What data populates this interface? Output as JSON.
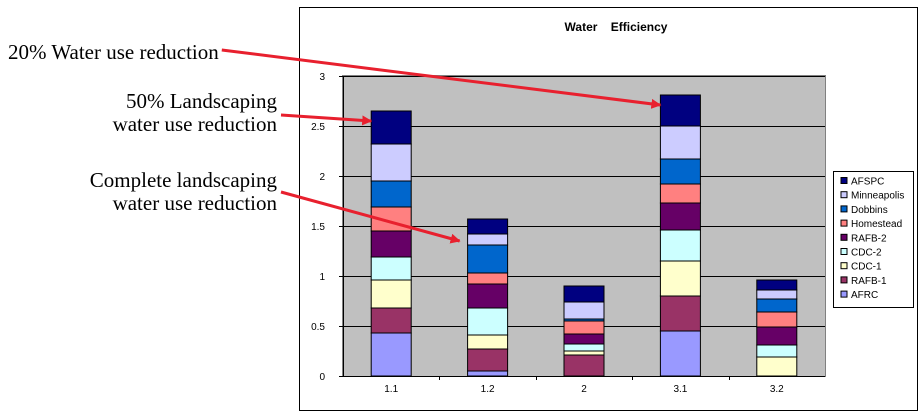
{
  "annotations": [
    {
      "id": "a1",
      "lines": [
        "20% Water use reduction"
      ],
      "points_to": "3.1"
    },
    {
      "id": "a2",
      "lines": [
        "50% Landscaping",
        "water use reduction"
      ],
      "points_to": "1.1"
    },
    {
      "id": "a3",
      "lines": [
        "Complete landscaping",
        "water use reduction"
      ],
      "points_to": "1.2"
    }
  ],
  "colors": {
    "plot_background": "#C0C0C0",
    "arrow": "#E8202E",
    "AFRC": "#9999FF",
    "RAFB-1": "#993366",
    "CDC-1": "#FFFFCC",
    "CDC-2": "#CCFFFF",
    "RAFB-2": "#660066",
    "Homestead": "#FF8080",
    "Dobbins": "#0066CC",
    "Minneapolis": "#CCCCFF",
    "AFSPC": "#000080"
  },
  "chart_data": {
    "type": "bar",
    "stacked": true,
    "title": "Water    Efficiency",
    "xlabel": "",
    "ylabel": "",
    "categories": [
      "1.1",
      "1.2",
      "2",
      "3.1",
      "3.2"
    ],
    "ylim": [
      0,
      3
    ],
    "yticks": [
      "0",
      "0.5",
      "1",
      "1.5",
      "2",
      "2.5",
      "3"
    ],
    "grid": true,
    "legend_position": "right",
    "series": [
      {
        "name": "AFRC",
        "values": [
          0.43,
          0.05,
          0.0,
          0.45,
          0.0
        ]
      },
      {
        "name": "RAFB-1",
        "values": [
          0.25,
          0.22,
          0.21,
          0.35,
          0.0
        ]
      },
      {
        "name": "CDC-1",
        "values": [
          0.28,
          0.14,
          0.04,
          0.35,
          0.19
        ]
      },
      {
        "name": "CDC-2",
        "values": [
          0.23,
          0.27,
          0.07,
          0.31,
          0.12
        ]
      },
      {
        "name": "RAFB-2",
        "values": [
          0.26,
          0.24,
          0.1,
          0.27,
          0.18
        ]
      },
      {
        "name": "Homestead",
        "values": [
          0.24,
          0.11,
          0.13,
          0.19,
          0.15
        ]
      },
      {
        "name": "Dobbins",
        "values": [
          0.26,
          0.28,
          0.02,
          0.25,
          0.13
        ]
      },
      {
        "name": "Minneapolis",
        "values": [
          0.37,
          0.11,
          0.17,
          0.33,
          0.09
        ]
      },
      {
        "name": "AFSPC",
        "values": [
          0.33,
          0.15,
          0.16,
          0.31,
          0.1
        ]
      }
    ]
  }
}
